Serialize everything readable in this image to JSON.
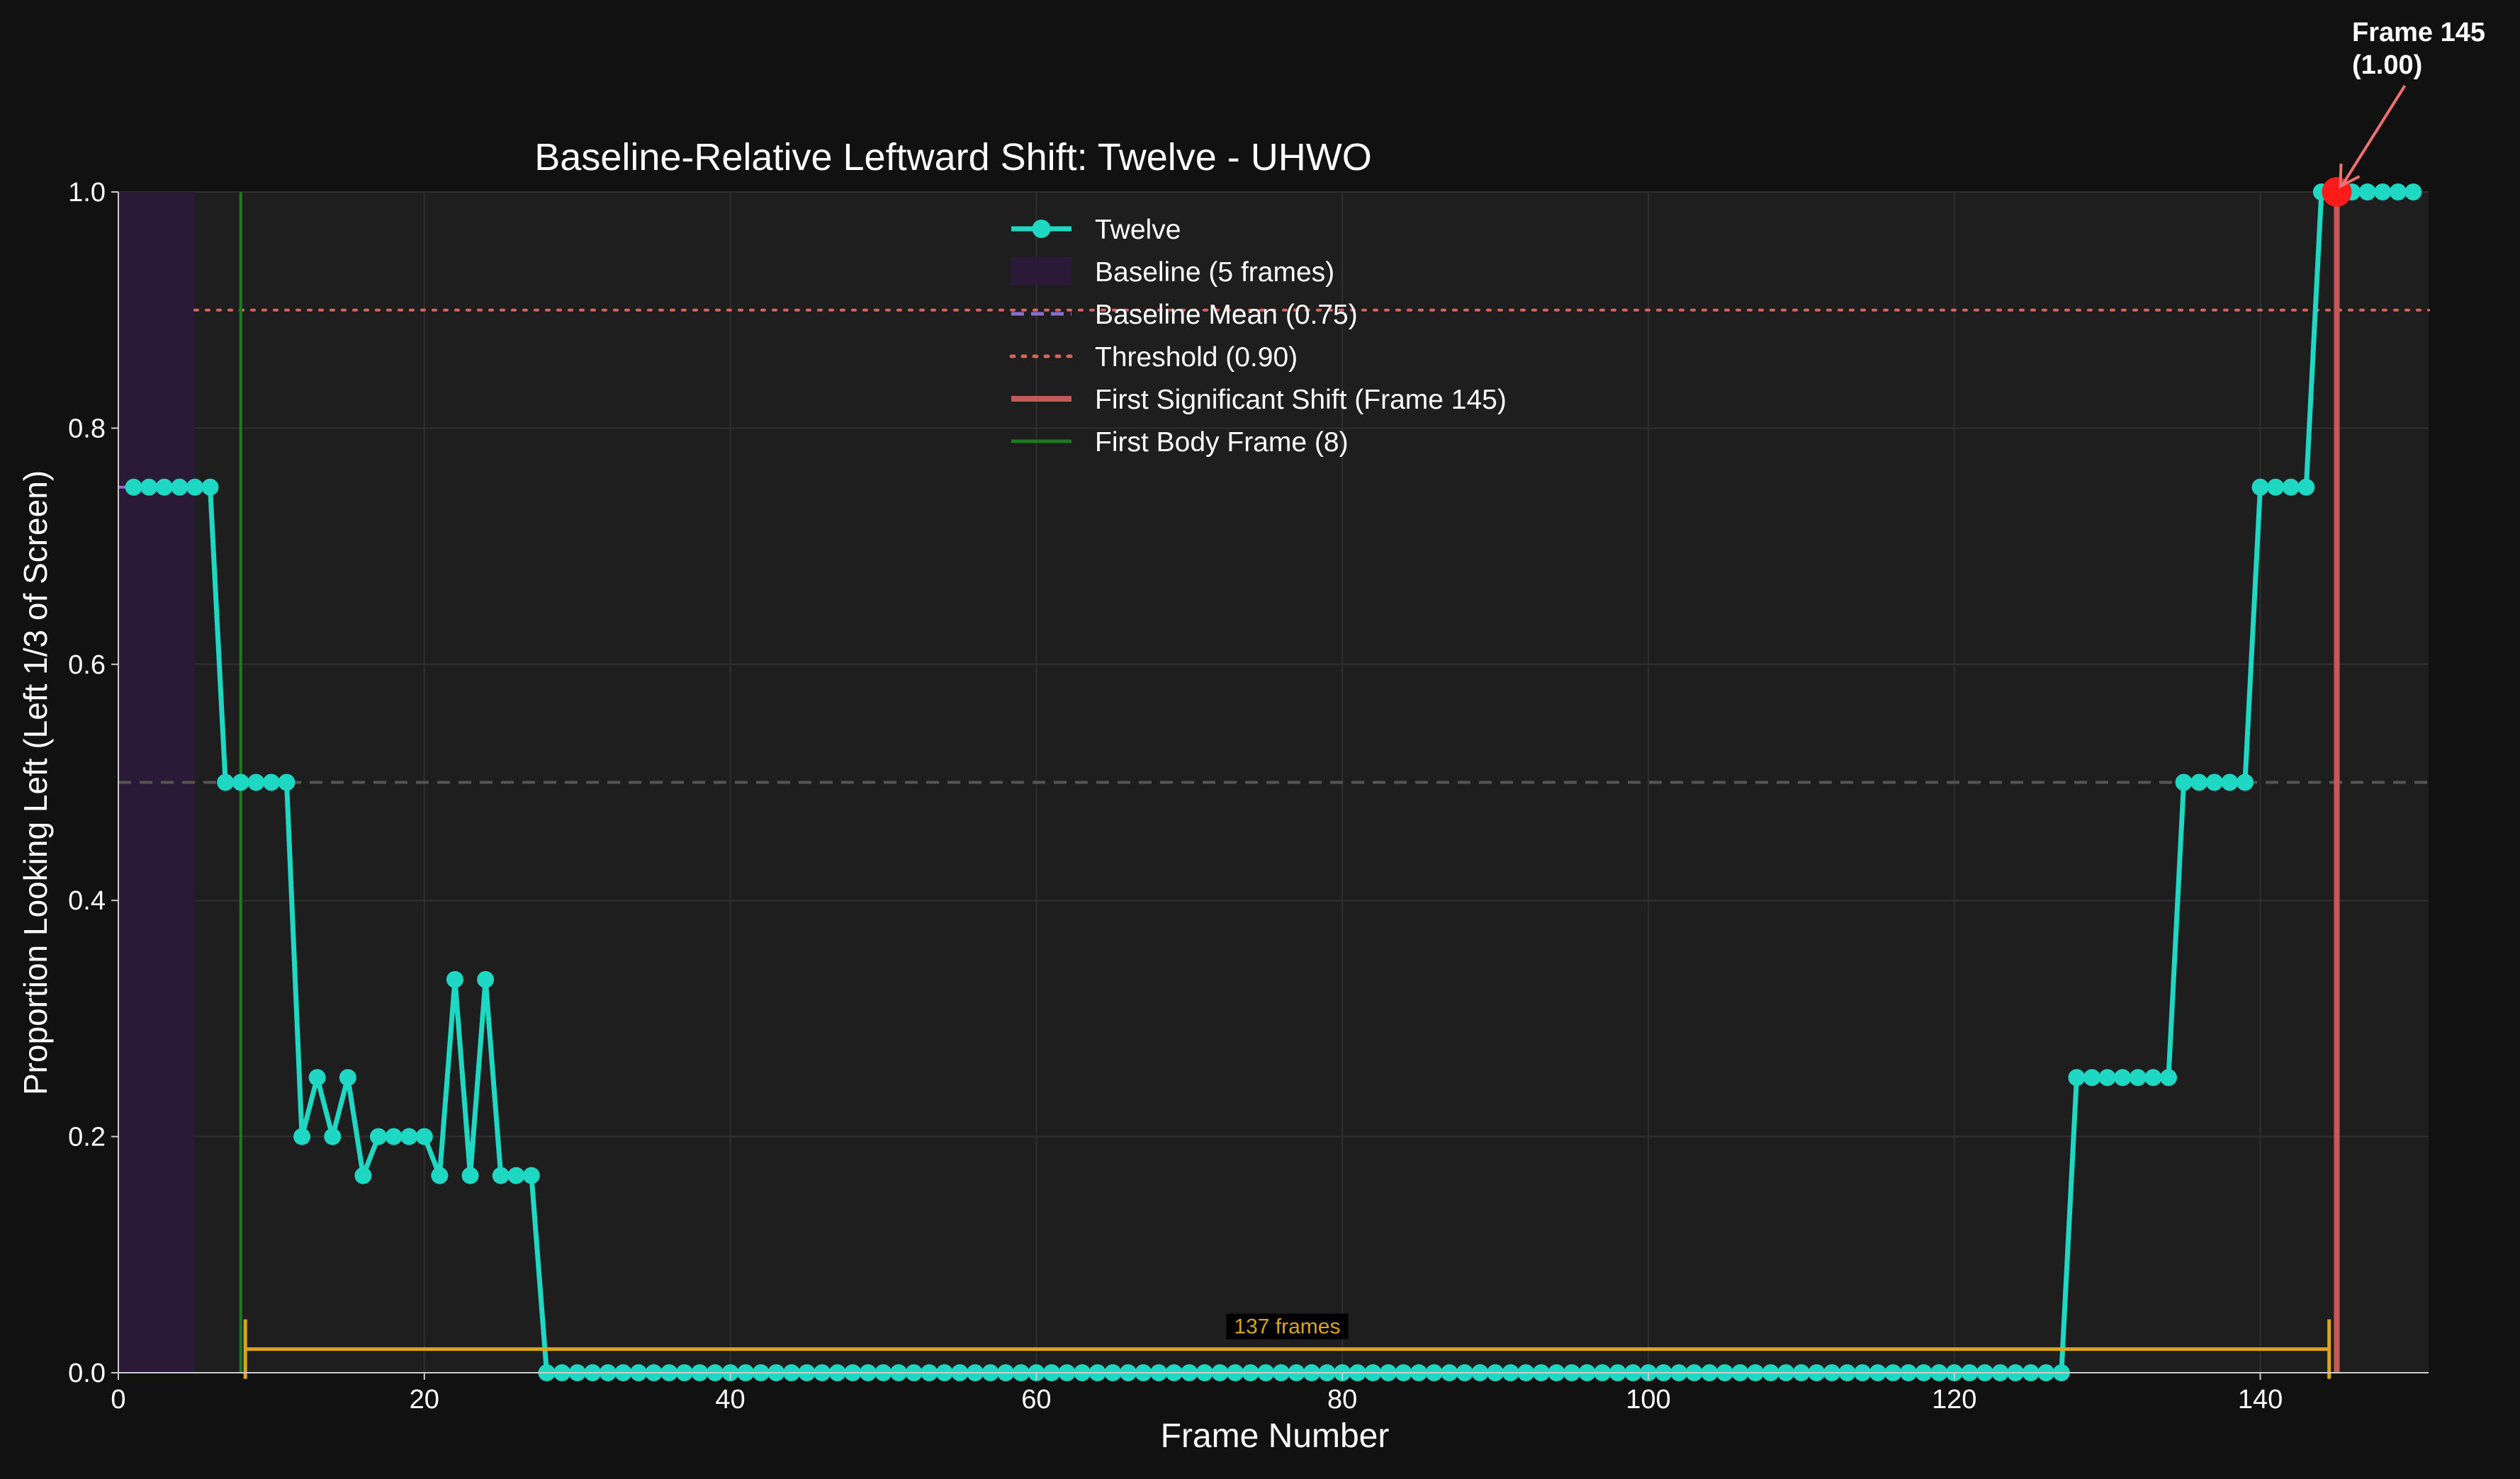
{
  "chart_data": {
    "type": "line",
    "title": "Baseline-Relative Leftward Shift: Twelve - UHWO",
    "xlabel": "Frame Number",
    "ylabel": "Proportion Looking Left (Left 1/3 of Screen)",
    "xlim": [
      0,
      151
    ],
    "ylim": [
      0,
      1.0
    ],
    "xticks": [
      0,
      20,
      40,
      60,
      80,
      100,
      120,
      140
    ],
    "yticks": [
      0.0,
      0.2,
      0.4,
      0.6,
      0.8,
      1.0
    ],
    "xtick_labels": [
      "0",
      "20",
      "40",
      "60",
      "80",
      "100",
      "120",
      "140"
    ],
    "ytick_labels": [
      "0.0",
      "0.2",
      "0.4",
      "0.6",
      "0.8",
      "1.0"
    ],
    "grid": true,
    "legend_position": "top-center",
    "colors": {
      "series": "#1fd8c3",
      "baseline_region": "#2a1a38",
      "baseline_mean": "#8a6fd1",
      "threshold": "#d9645f",
      "first_shift": "#c25a5a",
      "first_body": "#1e7a1e",
      "midline": "#555555",
      "span": "#d9a520",
      "annotation_arrow": "#ee7070",
      "highlight_point": "#ff1a1a"
    },
    "series": [
      {
        "name": "Twelve",
        "x": [
          1,
          2,
          3,
          4,
          5,
          6,
          7,
          8,
          9,
          10,
          11,
          12,
          13,
          14,
          15,
          16,
          17,
          18,
          19,
          20,
          21,
          22,
          23,
          24,
          25,
          26,
          27,
          28,
          29,
          30,
          31,
          32,
          33,
          34,
          35,
          36,
          37,
          38,
          39,
          40,
          41,
          42,
          43,
          44,
          45,
          46,
          47,
          48,
          49,
          50,
          51,
          52,
          53,
          54,
          55,
          56,
          57,
          58,
          59,
          60,
          61,
          62,
          63,
          64,
          65,
          66,
          67,
          68,
          69,
          70,
          71,
          72,
          73,
          74,
          75,
          76,
          77,
          78,
          79,
          80,
          81,
          82,
          83,
          84,
          85,
          86,
          87,
          88,
          89,
          90,
          91,
          92,
          93,
          94,
          95,
          96,
          97,
          98,
          99,
          100,
          101,
          102,
          103,
          104,
          105,
          106,
          107,
          108,
          109,
          110,
          111,
          112,
          113,
          114,
          115,
          116,
          117,
          118,
          119,
          120,
          121,
          122,
          123,
          124,
          125,
          126,
          127,
          128,
          129,
          130,
          131,
          132,
          133,
          134,
          135,
          136,
          137,
          138,
          139,
          140,
          141,
          142,
          143,
          144,
          145,
          146,
          147,
          148,
          149,
          150
        ],
        "y": [
          0.75,
          0.75,
          0.75,
          0.75,
          0.75,
          0.75,
          0.5,
          0.5,
          0.5,
          0.5,
          0.5,
          0.2,
          0.25,
          0.2,
          0.25,
          0.167,
          0.2,
          0.2,
          0.2,
          0.2,
          0.167,
          0.333,
          0.167,
          0.333,
          0.167,
          0.167,
          0.167,
          0,
          0,
          0,
          0,
          0,
          0,
          0,
          0,
          0,
          0,
          0,
          0,
          0,
          0,
          0,
          0,
          0,
          0,
          0,
          0,
          0,
          0,
          0,
          0,
          0,
          0,
          0,
          0,
          0,
          0,
          0,
          0,
          0,
          0,
          0,
          0,
          0,
          0,
          0,
          0,
          0,
          0,
          0,
          0,
          0,
          0,
          0,
          0,
          0,
          0,
          0,
          0,
          0,
          0,
          0,
          0,
          0,
          0,
          0,
          0,
          0,
          0,
          0,
          0,
          0,
          0,
          0,
          0,
          0,
          0,
          0,
          0,
          0,
          0,
          0,
          0,
          0,
          0,
          0,
          0,
          0,
          0,
          0,
          0,
          0,
          0,
          0,
          0,
          0,
          0,
          0,
          0,
          0,
          0,
          0,
          0,
          0,
          0,
          0,
          0,
          0.25,
          0.25,
          0.25,
          0.25,
          0.25,
          0.25,
          0.25,
          0.5,
          0.5,
          0.5,
          0.5,
          0.5,
          0.75,
          0.75,
          0.75,
          0.75,
          1.0,
          1.0,
          1.0,
          1.0,
          1.0,
          1.0,
          1.0
        ]
      }
    ],
    "baseline": {
      "label": "Baseline (5 frames)",
      "x_start": 0,
      "x_end": 5
    },
    "baseline_mean": {
      "label": "Baseline Mean (0.75)",
      "value": 0.75
    },
    "threshold": {
      "label": "Threshold (0.90)",
      "value": 0.9,
      "x_start": 5
    },
    "first_shift": {
      "label": "First Significant Shift (Frame 145)",
      "frame": 145,
      "value": 1.0
    },
    "first_body": {
      "label": "First Body Frame (8)",
      "frame": 8
    },
    "midline": {
      "value": 0.5
    },
    "span": {
      "label": "137 frames",
      "x_start": 8.3,
      "x_end": 144.5,
      "y": 0.02
    },
    "annotation": {
      "line1": "Frame 145",
      "line2": "(1.00)",
      "x": 145,
      "y": 1.0
    }
  }
}
